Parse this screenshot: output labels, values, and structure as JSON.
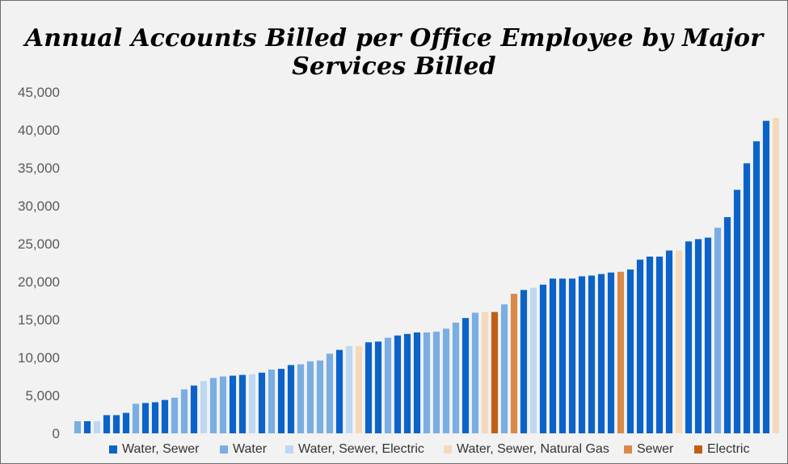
{
  "chart_data": {
    "type": "bar",
    "title": "Annual Accounts Billed per Office Employee by Major Services Billed",
    "ylim": [
      0,
      45000
    ],
    "yticks": [
      "0",
      "5,000",
      "10,000",
      "15,000",
      "20,000",
      "25,000",
      "30,000",
      "35,000",
      "40,000",
      "45,000"
    ],
    "grid": false,
    "legend_placement": "bottom",
    "series": [
      {
        "name": "Water, Sewer",
        "color": "#0b63c9"
      },
      {
        "name": "Water",
        "color": "#7aaee3"
      },
      {
        "name": "Water, Sewer, Electric",
        "color": "#bfd8f1"
      },
      {
        "name": "Water, Sewer, Natural Gas",
        "color": "#f5d9bd"
      },
      {
        "name": "Sewer",
        "color": "#d9894a"
      },
      {
        "name": "Electric",
        "color": "#c05f14"
      }
    ],
    "bars": [
      {
        "value": 1600,
        "series": 1
      },
      {
        "value": 1600,
        "series": 0
      },
      {
        "value": 1600,
        "series": 2
      },
      {
        "value": 2400,
        "series": 0
      },
      {
        "value": 2400,
        "series": 0
      },
      {
        "value": 2700,
        "series": 0
      },
      {
        "value": 3900,
        "series": 1
      },
      {
        "value": 4000,
        "series": 0
      },
      {
        "value": 4100,
        "series": 0
      },
      {
        "value": 4400,
        "series": 0
      },
      {
        "value": 4700,
        "series": 1
      },
      {
        "value": 5800,
        "series": 1
      },
      {
        "value": 6300,
        "series": 0
      },
      {
        "value": 6900,
        "series": 2
      },
      {
        "value": 7300,
        "series": 1
      },
      {
        "value": 7500,
        "series": 1
      },
      {
        "value": 7600,
        "series": 0
      },
      {
        "value": 7700,
        "series": 0
      },
      {
        "value": 7800,
        "series": 2
      },
      {
        "value": 8000,
        "series": 0
      },
      {
        "value": 8400,
        "series": 1
      },
      {
        "value": 8500,
        "series": 0
      },
      {
        "value": 9000,
        "series": 0
      },
      {
        "value": 9100,
        "series": 1
      },
      {
        "value": 9500,
        "series": 1
      },
      {
        "value": 9600,
        "series": 1
      },
      {
        "value": 10500,
        "series": 1
      },
      {
        "value": 11000,
        "series": 0
      },
      {
        "value": 11500,
        "series": 2
      },
      {
        "value": 11500,
        "series": 3
      },
      {
        "value": 12000,
        "series": 0
      },
      {
        "value": 12100,
        "series": 0
      },
      {
        "value": 12600,
        "series": 1
      },
      {
        "value": 12900,
        "series": 0
      },
      {
        "value": 13100,
        "series": 0
      },
      {
        "value": 13300,
        "series": 0
      },
      {
        "value": 13300,
        "series": 1
      },
      {
        "value": 13400,
        "series": 1
      },
      {
        "value": 13800,
        "series": 1
      },
      {
        "value": 14600,
        "series": 1
      },
      {
        "value": 15200,
        "series": 0
      },
      {
        "value": 15900,
        "series": 1
      },
      {
        "value": 16000,
        "series": 3
      },
      {
        "value": 16000,
        "series": 5
      },
      {
        "value": 17000,
        "series": 1
      },
      {
        "value": 18400,
        "series": 4
      },
      {
        "value": 18900,
        "series": 0
      },
      {
        "value": 19200,
        "series": 2
      },
      {
        "value": 19600,
        "series": 0
      },
      {
        "value": 20400,
        "series": 0
      },
      {
        "value": 20400,
        "series": 0
      },
      {
        "value": 20400,
        "series": 0
      },
      {
        "value": 20700,
        "series": 0
      },
      {
        "value": 20800,
        "series": 0
      },
      {
        "value": 21000,
        "series": 0
      },
      {
        "value": 21200,
        "series": 0
      },
      {
        "value": 21300,
        "series": 4
      },
      {
        "value": 21600,
        "series": 0
      },
      {
        "value": 22900,
        "series": 0
      },
      {
        "value": 23300,
        "series": 0
      },
      {
        "value": 23300,
        "series": 0
      },
      {
        "value": 24100,
        "series": 0
      },
      {
        "value": 24100,
        "series": 3
      },
      {
        "value": 25300,
        "series": 0
      },
      {
        "value": 25600,
        "series": 0
      },
      {
        "value": 25800,
        "series": 0
      },
      {
        "value": 27100,
        "series": 1
      },
      {
        "value": 28500,
        "series": 0
      },
      {
        "value": 32100,
        "series": 0
      },
      {
        "value": 35600,
        "series": 0
      },
      {
        "value": 38500,
        "series": 0
      },
      {
        "value": 41200,
        "series": 0
      },
      {
        "value": 41600,
        "series": 3
      }
    ]
  }
}
